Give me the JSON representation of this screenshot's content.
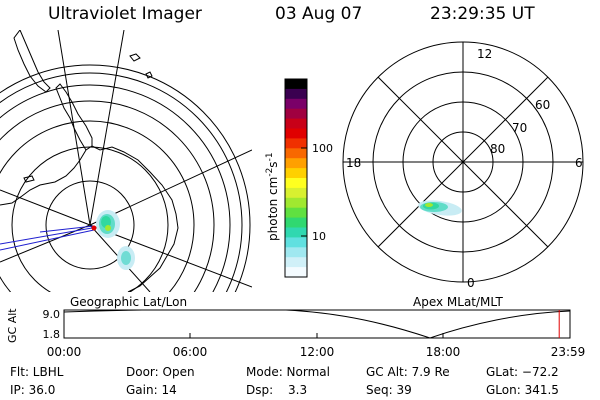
{
  "header": {
    "title": "Ultraviolet Imager",
    "date": "03 Aug 07",
    "time": "23:29:35 UT"
  },
  "geo_panel": {
    "label": "Geographic Lat/Lon"
  },
  "apex_panel": {
    "label": "Apex MLat/MLT",
    "mlt": {
      "top": "12",
      "bottom": "0",
      "left": "18",
      "right": "6"
    },
    "lat": [
      "60",
      "70",
      "80"
    ]
  },
  "colorbar": {
    "label": "photon cm",
    "label_sup1": "-2",
    "label_mid": "s",
    "label_sup2": "-1",
    "ticks": [
      "100",
      "10"
    ],
    "colors": [
      "#000000",
      "#3a0050",
      "#7a0068",
      "#a00040",
      "#c80018",
      "#e00000",
      "#f03000",
      "#f86800",
      "#ffa000",
      "#ffd000",
      "#ffff20",
      "#d8f030",
      "#a0e830",
      "#60e040",
      "#30d870",
      "#30d8b0",
      "#60e0e0",
      "#a0e8f0",
      "#d0f0f8",
      "#f4fbff"
    ]
  },
  "altitude_plot": {
    "ylabel": "GC Alt",
    "ymax": "9.0",
    "ymin": "1.8",
    "xticks": [
      "00:00",
      "06:00",
      "12:00",
      "18:00",
      "23:59"
    ],
    "current_hour": 23.49
  },
  "info": {
    "flt": "Flt: LBHL",
    "ip": "IP: 36.0",
    "door": "Door: Open",
    "gain": "Gain: 14",
    "mode": "Mode: Normal",
    "dsp_label": "Dsp:",
    "dsp_value": "3.3",
    "gcalt": "GC Alt: 7.9 Re",
    "seq": "Seq: 39",
    "glat": "GLat: −72.2",
    "glon": "GLon: 341.5"
  }
}
